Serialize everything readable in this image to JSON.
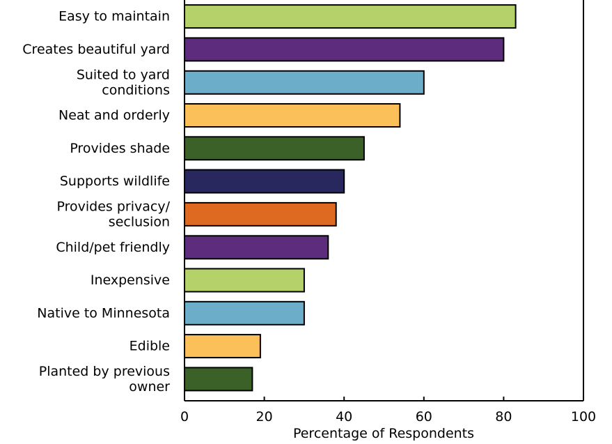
{
  "chart_data": {
    "type": "bar",
    "orientation": "horizontal",
    "title": "",
    "xlabel": "Percentage of Respondents",
    "ylabel": "",
    "xlim": [
      0,
      100
    ],
    "xticks": [
      "0",
      "20",
      "40",
      "60",
      "80",
      "100"
    ],
    "grid": false,
    "categories": [
      [
        "Easy to maintain"
      ],
      [
        "Creates beautiful yard"
      ],
      [
        "Suited to yard",
        "conditions"
      ],
      [
        "Neat and orderly"
      ],
      [
        "Provides shade"
      ],
      [
        "Supports wildlife"
      ],
      [
        "Provides privacy/",
        "seclusion"
      ],
      [
        "Child/pet friendly"
      ],
      [
        "Inexpensive"
      ],
      [
        "Native to Minnesota"
      ],
      [
        "Edible"
      ],
      [
        "Planted by previous",
        "owner"
      ]
    ],
    "values": [
      83,
      80,
      60,
      54,
      45,
      40,
      38,
      36,
      30,
      30,
      19,
      17
    ],
    "colors": [
      "#b5d16a",
      "#5e2c7c",
      "#6caec9",
      "#fbc05a",
      "#3b6129",
      "#29285e",
      "#dd6a20",
      "#5e2c7c",
      "#b5d16a",
      "#6caec9",
      "#fbc05a",
      "#3b6129"
    ]
  }
}
